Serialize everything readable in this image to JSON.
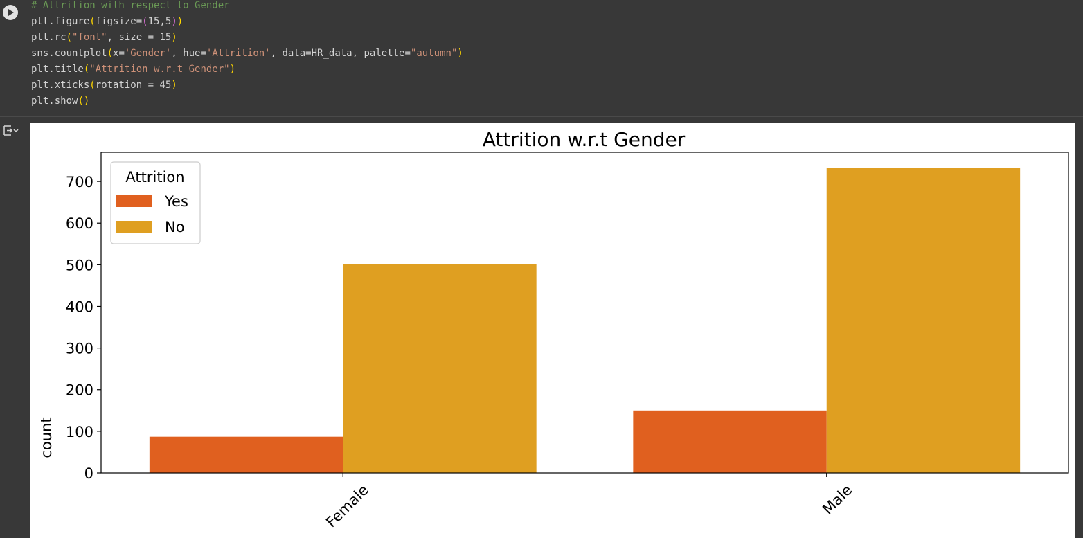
{
  "code_cell": {
    "lines": [
      [
        {
          "t": "# Attrition with respect to Gender",
          "c": "cm"
        }
      ],
      [
        {
          "t": "plt.figure",
          "c": "fn"
        },
        {
          "t": "(",
          "c": "pn"
        },
        {
          "t": "figsize=",
          "c": "fn"
        },
        {
          "t": "(",
          "c": "pn2"
        },
        {
          "t": "15",
          "c": "fn"
        },
        {
          "t": ",",
          "c": "fn"
        },
        {
          "t": "5",
          "c": "fn"
        },
        {
          "t": ")",
          "c": "pn2"
        },
        {
          "t": ")",
          "c": "pn"
        }
      ],
      [
        {
          "t": "plt.rc",
          "c": "fn"
        },
        {
          "t": "(",
          "c": "pn"
        },
        {
          "t": "\"font\"",
          "c": "st"
        },
        {
          "t": ", size = ",
          "c": "fn"
        },
        {
          "t": "15",
          "c": "fn"
        },
        {
          "t": ")",
          "c": "pn"
        }
      ],
      [
        {
          "t": "sns.countplot",
          "c": "fn"
        },
        {
          "t": "(",
          "c": "pn"
        },
        {
          "t": "x=",
          "c": "fn"
        },
        {
          "t": "'Gender'",
          "c": "st"
        },
        {
          "t": ", hue=",
          "c": "fn"
        },
        {
          "t": "'Attrition'",
          "c": "st"
        },
        {
          "t": ", data=HR_data, palette=",
          "c": "fn"
        },
        {
          "t": "\"autumn\"",
          "c": "st"
        },
        {
          "t": ")",
          "c": "pn"
        }
      ],
      [
        {
          "t": "plt.title",
          "c": "fn"
        },
        {
          "t": "(",
          "c": "pn"
        },
        {
          "t": "\"Attrition w.r.t Gender\"",
          "c": "st"
        },
        {
          "t": ")",
          "c": "pn"
        }
      ],
      [
        {
          "t": "plt.xticks",
          "c": "fn"
        },
        {
          "t": "(",
          "c": "pn"
        },
        {
          "t": "rotation = ",
          "c": "fn"
        },
        {
          "t": "45",
          "c": "fn"
        },
        {
          "t": ")",
          "c": "pn"
        }
      ],
      [
        {
          "t": "plt.show",
          "c": "fn"
        },
        {
          "t": "()",
          "c": "pn"
        }
      ]
    ]
  },
  "icons": {
    "run": "run-play-icon",
    "output_toggle": "output-collapse-icon"
  },
  "colors": {
    "yes": "#e0601f",
    "no": "#df9f21"
  },
  "chart_data": {
    "type": "bar",
    "title": "Attrition w.r.t Gender",
    "xlabel": "",
    "ylabel": "count",
    "categories": [
      "Female",
      "Male"
    ],
    "series": [
      {
        "name": "Yes",
        "values": [
          87,
          150
        ]
      },
      {
        "name": "No",
        "values": [
          501,
          732
        ]
      }
    ],
    "ylim": [
      0,
      770
    ],
    "yticks": [
      0,
      100,
      200,
      300,
      400,
      500,
      600,
      700
    ],
    "xtick_rotation": 45,
    "legend": {
      "title": "Attrition",
      "placement": "top-left"
    },
    "grid": false
  }
}
